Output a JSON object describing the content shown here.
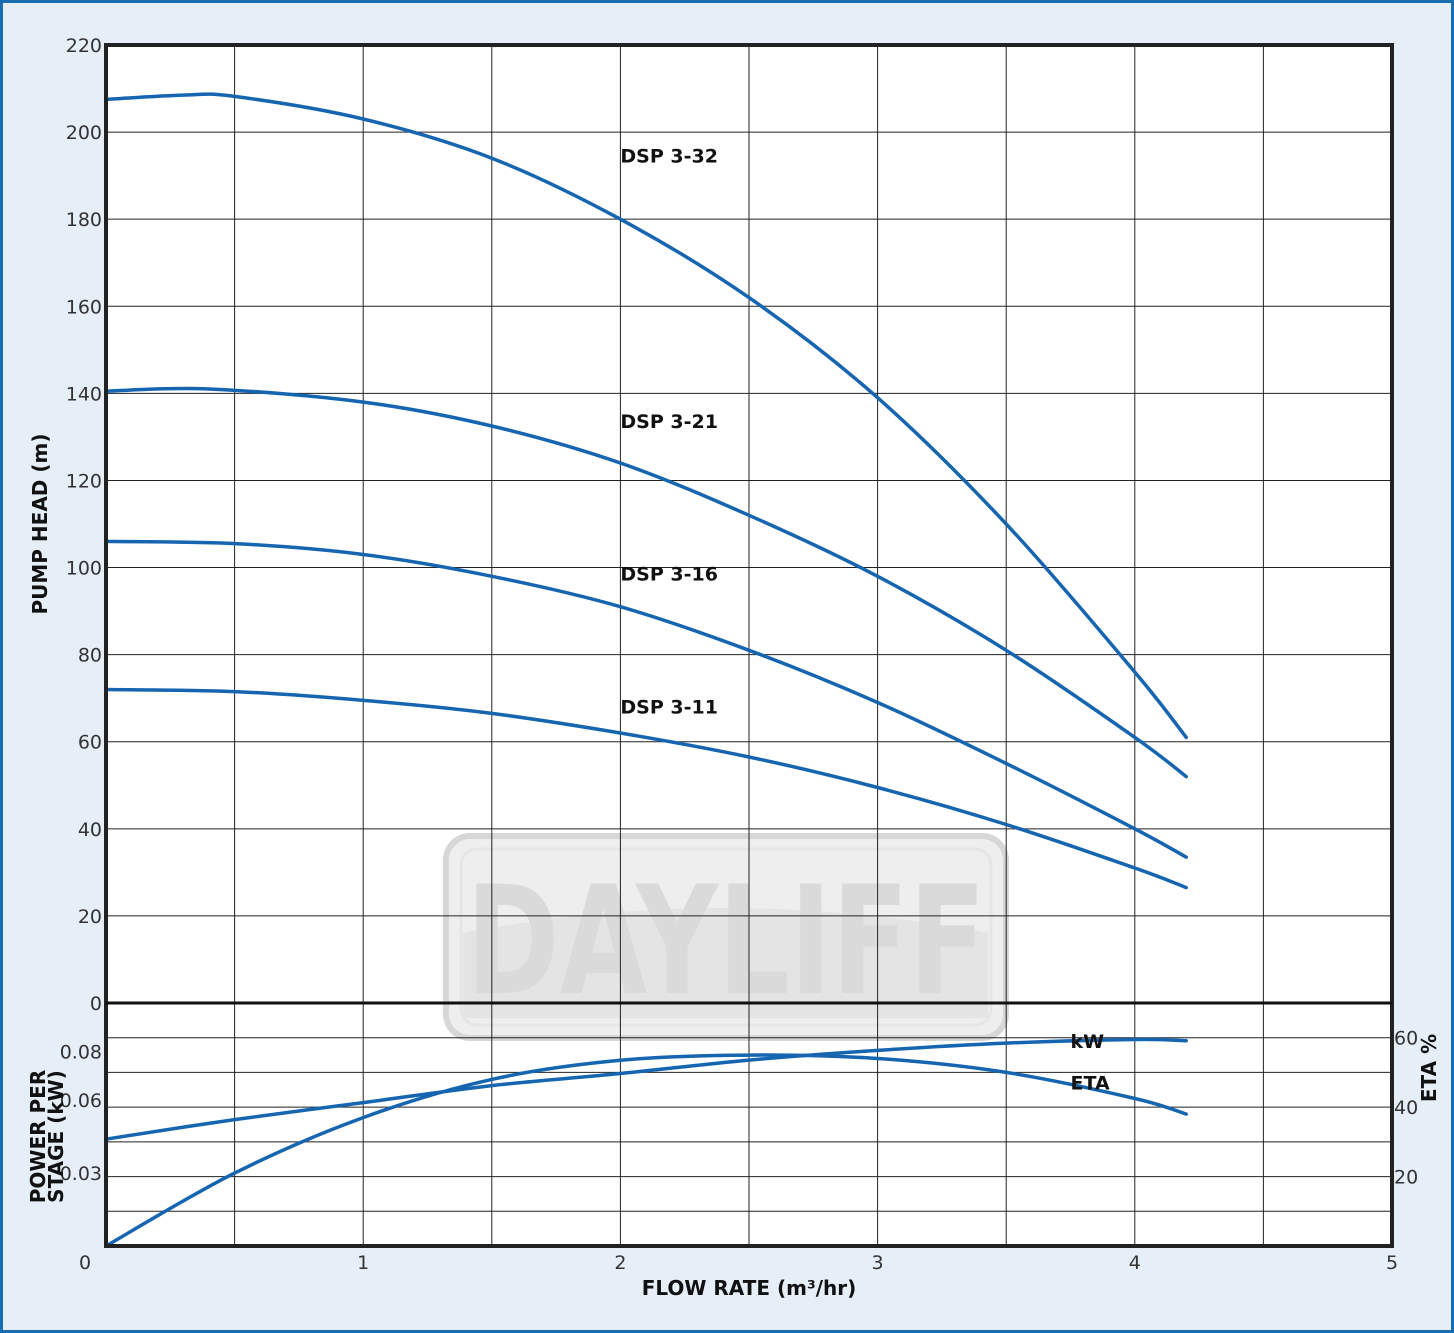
{
  "colors": {
    "frame": "#1b6db1",
    "background": "#e6eef8",
    "plot_bg": "#ffffff",
    "curve": "#1565b0",
    "grid": "#222222",
    "watermark": "#d9d9d9"
  },
  "watermark": {
    "text": "DAYLIFF"
  },
  "chart_data": [
    {
      "type": "line",
      "ylabel": "PUMP HEAD (m)",
      "xlim": [
        0,
        5
      ],
      "ylim": [
        0,
        220
      ],
      "yticks": [
        0,
        20,
        40,
        60,
        80,
        100,
        120,
        140,
        160,
        180,
        200,
        220
      ],
      "grid": true,
      "series": [
        {
          "name": "DSP 3-32",
          "x": [
            0,
            0.3,
            0.5,
            1.0,
            1.5,
            2.0,
            2.5,
            3.0,
            3.5,
            4.0,
            4.2
          ],
          "y": [
            207.5,
            208.5,
            208.2,
            203,
            194,
            180,
            162,
            139,
            110,
            76,
            61
          ]
        },
        {
          "name": "DSP 3-21",
          "x": [
            0,
            0.4,
            1.0,
            1.5,
            2.0,
            2.5,
            3.0,
            3.5,
            4.0,
            4.2
          ],
          "y": [
            140.5,
            141,
            138,
            132.5,
            124,
            112,
            98,
            81,
            61,
            52
          ]
        },
        {
          "name": "DSP 3-16",
          "x": [
            0,
            0.5,
            1.0,
            1.5,
            2.0,
            2.5,
            3.0,
            3.5,
            4.0,
            4.2
          ],
          "y": [
            106,
            105.5,
            103,
            98,
            91,
            81,
            69,
            55,
            40,
            33.5
          ]
        },
        {
          "name": "DSP 3-11",
          "x": [
            0,
            0.5,
            1.0,
            1.5,
            2.0,
            2.5,
            3.0,
            3.5,
            4.0,
            4.2
          ],
          "y": [
            72,
            71.5,
            69.5,
            66.5,
            62,
            56.5,
            49.5,
            41,
            31,
            26.5
          ]
        }
      ],
      "label_positions": [
        {
          "series": "DSP 3-32",
          "x": 2.0,
          "y": 193
        },
        {
          "series": "DSP 3-21",
          "x": 2.0,
          "y": 132
        },
        {
          "series": "DSP 3-16",
          "x": 2.0,
          "y": 97
        },
        {
          "series": "DSP 3-11",
          "x": 2.0,
          "y": 66.5
        }
      ]
    },
    {
      "type": "line",
      "xlabel": "FLOW RATE (m³/hr)",
      "ylabel": "POWER PER STAGE (kW)",
      "ylabel_lines": [
        "POWER PER",
        "STAGE (kW)"
      ],
      "y2label": "ETA %",
      "xlim": [
        0,
        5
      ],
      "xticks": [
        0,
        1,
        2,
        3,
        4,
        5
      ],
      "ylim": [
        0,
        0.1
      ],
      "yticks": [
        0,
        0.03,
        0.06,
        0.08
      ],
      "ytick_labels": [
        "0",
        "0.03",
        "0.06",
        "0.08"
      ],
      "y2lim": [
        0,
        70
      ],
      "y2ticks": [
        20,
        40,
        60
      ],
      "grid": true,
      "series": [
        {
          "name": "kW",
          "axis": "left",
          "x": [
            0,
            0.5,
            1.0,
            1.5,
            2.0,
            2.5,
            3.0,
            3.5,
            4.0,
            4.2
          ],
          "y": [
            0.044,
            0.052,
            0.059,
            0.066,
            0.071,
            0.0765,
            0.0805,
            0.0835,
            0.085,
            0.0845
          ]
        },
        {
          "name": "ETA",
          "axis": "right",
          "x": [
            0,
            0.5,
            1.0,
            1.5,
            2.0,
            2.5,
            3.0,
            3.5,
            4.0,
            4.2
          ],
          "y": [
            0,
            21,
            37,
            48,
            53.5,
            55,
            54,
            50,
            42.5,
            38
          ]
        }
      ],
      "label_positions": [
        {
          "series": "kW",
          "x": 3.75,
          "y": 0.0815
        },
        {
          "series": "ETA",
          "x": 3.75,
          "y": 0.0645
        }
      ]
    }
  ]
}
